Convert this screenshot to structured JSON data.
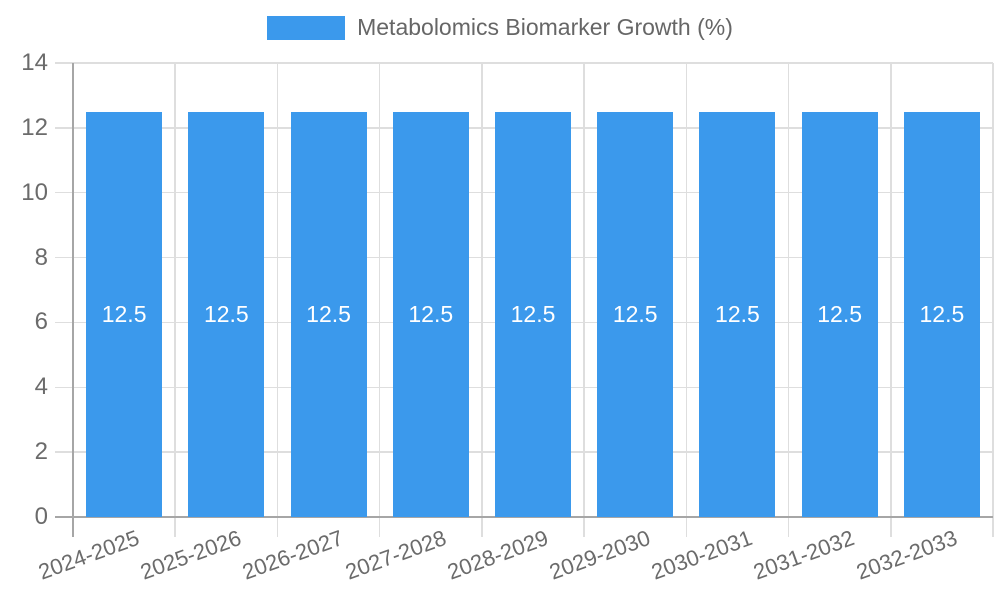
{
  "chart_data": {
    "type": "bar",
    "title": "Metabolomics Biomarker Growth (%)",
    "legend_position": "top",
    "categories": [
      "2024-2025",
      "2025-2026",
      "2026-2027",
      "2027-2028",
      "2028-2029",
      "2029-2030",
      "2030-2031",
      "2031-2032",
      "2032-2033"
    ],
    "values": [
      12.5,
      12.5,
      12.5,
      12.5,
      12.5,
      12.5,
      12.5,
      12.5,
      12.5
    ],
    "bar_value_labels": [
      "12.5",
      "12.5",
      "12.5",
      "12.5",
      "12.5",
      "12.5",
      "12.5",
      "12.5",
      "12.5"
    ],
    "xlabel": "",
    "ylabel": "",
    "ylim": [
      0,
      14
    ],
    "yticks": [
      0,
      2,
      4,
      6,
      8,
      10,
      12,
      14
    ],
    "grid": true,
    "colors": {
      "bar": "#3b99ec",
      "grid": "#dedede",
      "axis": "#a6a6a6",
      "tick_text": "#6b6b6b",
      "legend_text": "#666666",
      "bar_value_text": "#ffffff"
    }
  }
}
